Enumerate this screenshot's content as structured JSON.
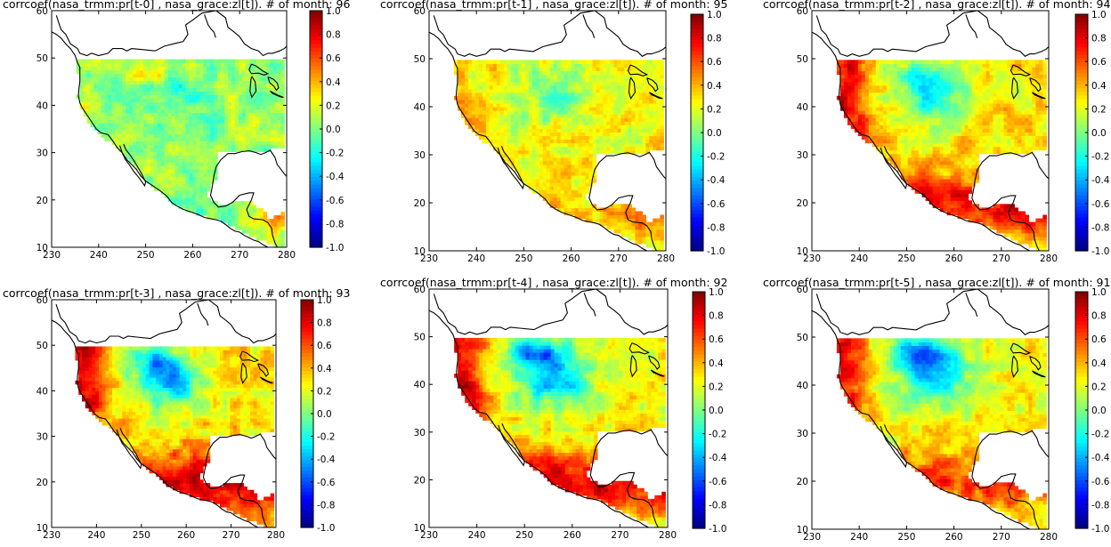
{
  "chart_data": [
    {
      "type": "heatmap",
      "title": "corrcoef(nasa_trmm:pr[t-0] , nasa_grace:zl[t]). # of month: 96",
      "xlim": [
        230,
        280
      ],
      "ylim": [
        10,
        60
      ],
      "xticks": [
        "230",
        "240",
        "250",
        "260",
        "270",
        "280"
      ],
      "yticks": [
        "10",
        "20",
        "30",
        "40",
        "50",
        "60"
      ],
      "colorbar": {
        "min": -1.0,
        "max": 1.0,
        "ticks": [
          "1.0",
          "0.8",
          "0.6",
          "0.4",
          "0.2",
          "0.0",
          "-0.2",
          "-0.4",
          "-0.6",
          "-0.8",
          "-1.0"
        ]
      },
      "lag": 0,
      "months": 96,
      "field": {
        "base": 0.05,
        "west": 0.1,
        "south": 0.0,
        "central": -0.15,
        "southeast": 0.5,
        "plains_north": 0.3
      }
    },
    {
      "type": "heatmap",
      "title": "corrcoef(nasa_trmm:pr[t-1] , nasa_grace:zl[t]). # of month: 95",
      "xlim": [
        230,
        280
      ],
      "ylim": [
        10,
        60
      ],
      "xticks": [
        "230",
        "240",
        "250",
        "260",
        "270",
        "280"
      ],
      "yticks": [
        "10",
        "20",
        "30",
        "40",
        "50",
        "60"
      ],
      "colorbar": {
        "min": -1.0,
        "max": 1.0,
        "ticks": [
          "1.0",
          "0.8",
          "0.6",
          "0.4",
          "0.2",
          "0.0",
          "-0.2",
          "-0.4",
          "-0.6",
          "-0.8",
          "-1.0"
        ]
      },
      "lag": 1,
      "months": 95,
      "field": {
        "base": 0.25,
        "west": 0.35,
        "south": 0.35,
        "central": -0.05,
        "southeast": 0.55,
        "plains_north": 0.2
      }
    },
    {
      "type": "heatmap",
      "title": "corrcoef(nasa_trmm:pr[t-2] , nasa_grace:zl[t]). # of month: 94",
      "xlim": [
        230,
        280
      ],
      "ylim": [
        10,
        60
      ],
      "xticks": [
        "230",
        "240",
        "250",
        "260",
        "270",
        "280"
      ],
      "yticks": [
        "10",
        "20",
        "30",
        "40",
        "50",
        "60"
      ],
      "colorbar": {
        "min": -1.0,
        "max": 1.0,
        "ticks": [
          "1.0",
          "0.8",
          "0.6",
          "0.4",
          "0.2",
          "0.0",
          "-0.2",
          "-0.4",
          "-0.6",
          "-0.8",
          "-1.0"
        ]
      },
      "lag": 2,
      "months": 94,
      "field": {
        "base": 0.3,
        "west": 0.75,
        "south": 0.75,
        "central": -0.2,
        "southeast": 0.45,
        "plains_north": 0.0
      }
    },
    {
      "type": "heatmap",
      "title": "corrcoef(nasa_trmm:pr[t-3] , nasa_grace:zl[t]). # of month: 93",
      "xlim": [
        230,
        280
      ],
      "ylim": [
        10,
        60
      ],
      "xticks": [
        "230",
        "240",
        "250",
        "260",
        "270",
        "280"
      ],
      "yticks": [
        "10",
        "20",
        "30",
        "40",
        "50",
        "60"
      ],
      "colorbar": {
        "min": -1.0,
        "max": 1.0,
        "ticks": [
          "1.0",
          "0.8",
          "0.6",
          "0.4",
          "0.2",
          "0.0",
          "-0.2",
          "-0.4",
          "-0.6",
          "-0.8",
          "-1.0"
        ]
      },
      "lag": 3,
      "months": 93,
      "field": {
        "base": 0.3,
        "west": 0.85,
        "south": 0.85,
        "central": -0.35,
        "southeast": 0.35,
        "plains_north": -0.1
      }
    },
    {
      "type": "heatmap",
      "title": "corrcoef(nasa_trmm:pr[t-4] , nasa_grace:zl[t]). # of month: 92",
      "xlim": [
        230,
        280
      ],
      "ylim": [
        10,
        60
      ],
      "xticks": [
        "230",
        "240",
        "250",
        "260",
        "270",
        "280"
      ],
      "yticks": [
        "10",
        "20",
        "30",
        "40",
        "50",
        "60"
      ],
      "colorbar": {
        "min": -1.0,
        "max": 1.0,
        "ticks": [
          "1.0",
          "0.8",
          "0.6",
          "0.4",
          "0.2",
          "0.0",
          "-0.2",
          "-0.4",
          "-0.6",
          "-0.8",
          "-1.0"
        ]
      },
      "lag": 4,
      "months": 92,
      "field": {
        "base": 0.25,
        "west": 0.8,
        "south": 0.8,
        "central": -0.4,
        "southeast": 0.3,
        "plains_north": -0.3
      }
    },
    {
      "type": "heatmap",
      "title": "corrcoef(nasa_trmm:pr[t-5] , nasa_grace:zl[t]). # of month: 91",
      "xlim": [
        230,
        280
      ],
      "ylim": [
        10,
        60
      ],
      "xticks": [
        "230",
        "240",
        "250",
        "260",
        "270",
        "280"
      ],
      "yticks": [
        "10",
        "20",
        "30",
        "40",
        "50",
        "60"
      ],
      "colorbar": {
        "min": -1.0,
        "max": 1.0,
        "ticks": [
          "1.0",
          "0.8",
          "0.6",
          "0.4",
          "0.2",
          "0.0",
          "-0.2",
          "-0.4",
          "-0.6",
          "-0.8",
          "-1.0"
        ]
      },
      "lag": 5,
      "months": 91,
      "field": {
        "base": 0.25,
        "west": 0.7,
        "south": 0.65,
        "central": -0.35,
        "southeast": 0.2,
        "plains_north": -0.35
      }
    }
  ],
  "colors": {
    "coastline": "#000000",
    "background": "#ffffff",
    "colormap": "jet"
  },
  "icons": {
    "map": "north-america-map"
  }
}
